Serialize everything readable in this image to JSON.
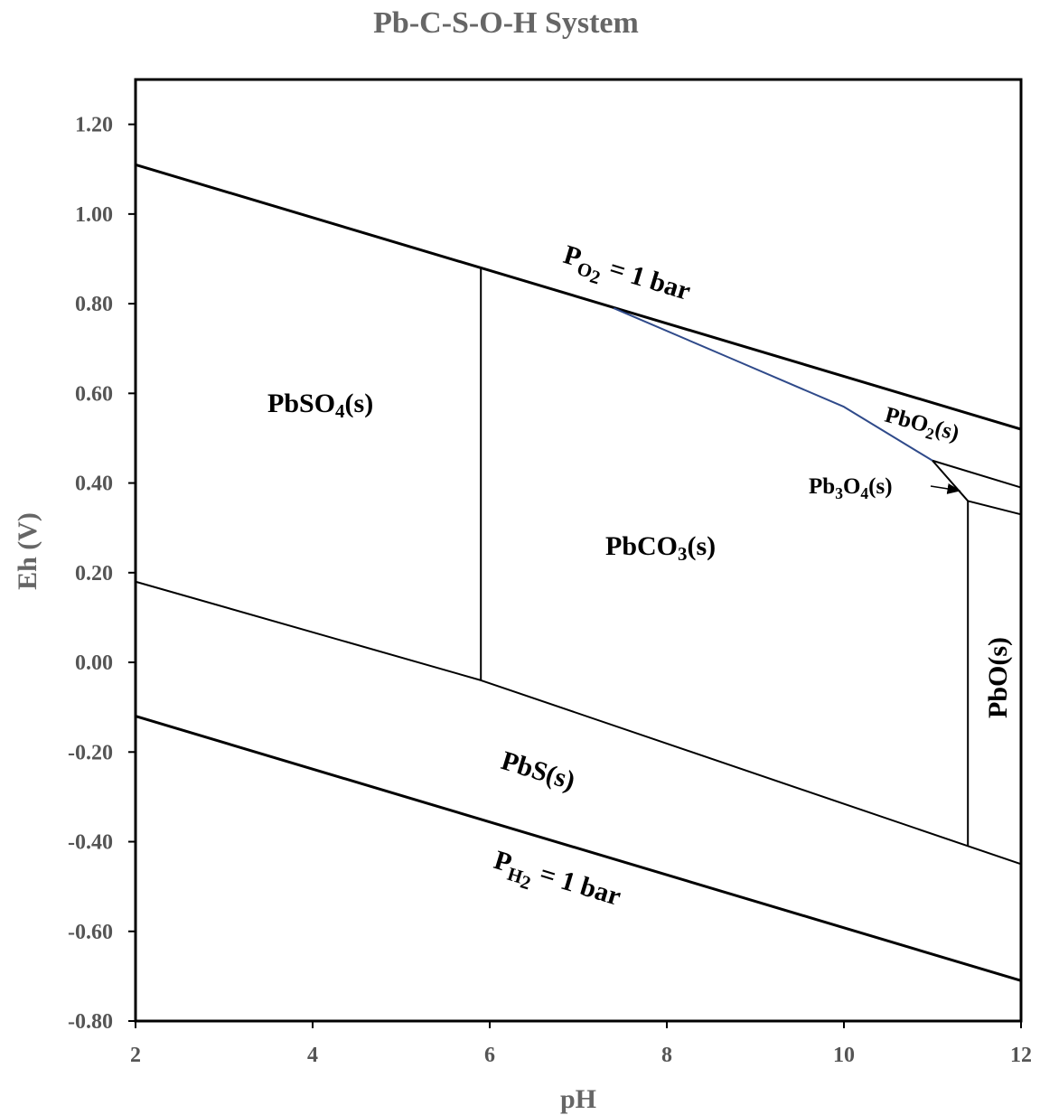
{
  "chart_data": {
    "type": "line",
    "title": "Pb-C-S-O-H System",
    "xlabel": "pH",
    "ylabel": "Eh (V)",
    "xlim": [
      2,
      12
    ],
    "ylim": [
      -0.8,
      1.3
    ],
    "x_ticks": [
      "2",
      "4",
      "6",
      "8",
      "10",
      "12"
    ],
    "y_ticks": [
      "-0.80",
      "-0.60",
      "-0.40",
      "-0.20",
      "0.00",
      "0.20",
      "0.40",
      "0.60",
      "0.80",
      "1.00",
      "1.20"
    ],
    "grid": false,
    "series": [
      {
        "x": [
          2,
          12
        ],
        "y": [
          1.11,
          0.52
        ],
        "color": "#000000",
        "width": 3
      },
      {
        "x": [
          2,
          12
        ],
        "y": [
          -0.12,
          -0.71
        ],
        "color": "#000000",
        "width": 3
      },
      {
        "x": [
          2,
          5.9,
          12
        ],
        "y": [
          0.18,
          -0.04,
          -0.45
        ],
        "color": "#000000",
        "width": 2
      },
      {
        "x": [
          5.9,
          5.9
        ],
        "y": [
          0.88,
          -0.04
        ],
        "color": "#000000",
        "width": 2
      },
      {
        "x": [
          7.4,
          8.7,
          10.0,
          11.0
        ],
        "y": [
          0.79,
          0.68,
          0.57,
          0.45
        ],
        "color": "#2f4a8a",
        "width": 2
      },
      {
        "x": [
          11.0,
          12
        ],
        "y": [
          0.45,
          0.39
        ],
        "color": "#000000",
        "width": 2
      },
      {
        "x": [
          11.0,
          11.4
        ],
        "y": [
          0.45,
          0.36
        ],
        "color": "#000000",
        "width": 2
      },
      {
        "x": [
          11.4,
          12
        ],
        "y": [
          0.36,
          0.33
        ],
        "color": "#000000",
        "width": 2
      },
      {
        "x": [
          11.4,
          11.4
        ],
        "y": [
          0.36,
          -0.41
        ],
        "color": "#000000",
        "width": 2
      }
    ],
    "annotations": [
      {
        "text": "PbSO4(s)",
        "x": 4.5,
        "y": 0.58
      },
      {
        "text": "PbCO3(s)",
        "x": 8.1,
        "y": 0.25
      },
      {
        "text": "PbS(s)",
        "x": 6.5,
        "y": -0.25
      },
      {
        "text": "PO2 = 1 bar",
        "x": 8.1,
        "y": 0.86
      },
      {
        "text": "PH2 = 1 bar",
        "x": 6.7,
        "y": -0.5
      },
      {
        "text": "PbO2(s)",
        "x": 11.1,
        "y": 0.52
      },
      {
        "text": "Pb3O4(s)",
        "x": 10.2,
        "y": 0.39
      },
      {
        "text": "PbO(s)",
        "x": 11.8,
        "y": -0.03
      }
    ]
  }
}
